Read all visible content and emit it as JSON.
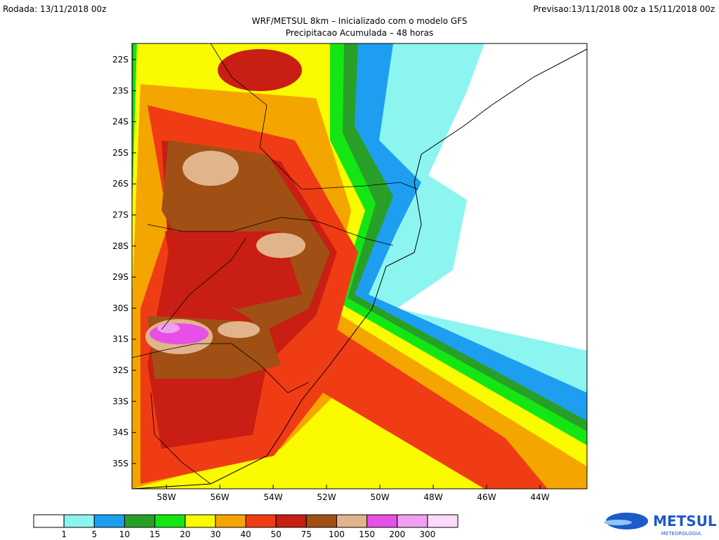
{
  "header": {
    "run": "Rodada: 13/11/2018 00z",
    "forecast": "Previsao:13/11/2018 00z a 15/11/2018 00z"
  },
  "title": "WRF/METSUL 8km – Inicializado com o modelo GFS",
  "subtitle": "Precipitacao Acumulada – 48 horas",
  "lat_labels": [
    "22S",
    "23S",
    "24S",
    "25S",
    "26S",
    "27S",
    "28S",
    "29S",
    "30S",
    "31S",
    "32S",
    "33S",
    "34S",
    "35S"
  ],
  "lon_labels": [
    "58W",
    "56W",
    "54W",
    "52W",
    "50W",
    "48W",
    "46W",
    "44W"
  ],
  "legend": {
    "colors": [
      "#ffffff",
      "#8cf5f0",
      "#1e9ef0",
      "#28a028",
      "#14e614",
      "#fafa00",
      "#f5a500",
      "#f03c14",
      "#c81e14",
      "#a05014",
      "#e1b48c",
      "#e650e6",
      "#f0a0f0",
      "#fadcfa"
    ],
    "labels": [
      "1",
      "5",
      "10",
      "15",
      "20",
      "30",
      "40",
      "50",
      "75",
      "100",
      "150",
      "200",
      "300"
    ]
  },
  "logo": {
    "name": "METSUL",
    "tagline": "METEOROLOGIA"
  }
}
